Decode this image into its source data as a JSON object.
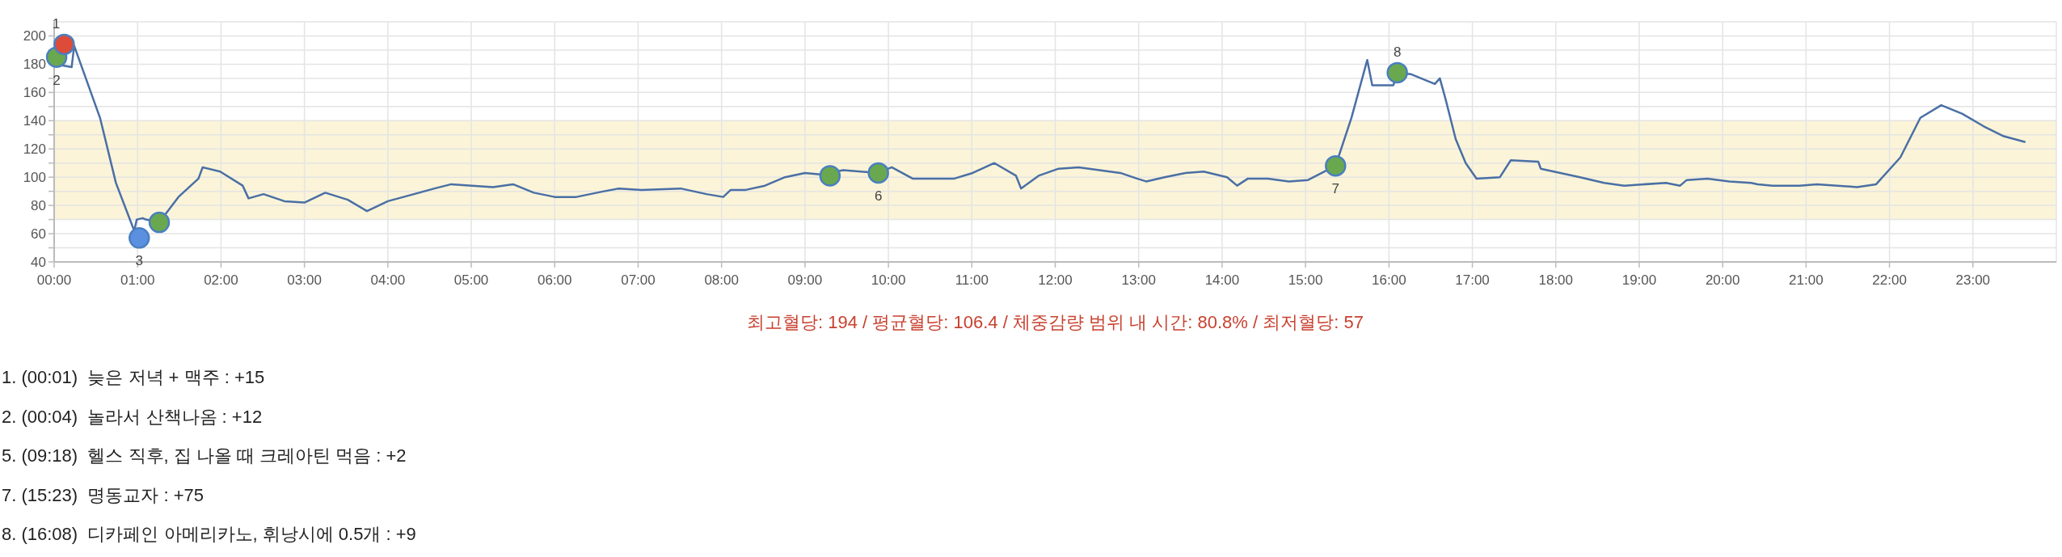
{
  "chart_data": {
    "type": "line",
    "grid": true,
    "xlim": [
      0,
      24
    ],
    "xticks": [
      {
        "value": 0,
        "label": "00:00"
      },
      {
        "value": 1,
        "label": "01:00"
      },
      {
        "value": 2,
        "label": "02:00"
      },
      {
        "value": 3,
        "label": "03:00"
      },
      {
        "value": 4,
        "label": "04:00"
      },
      {
        "value": 5,
        "label": "05:00"
      },
      {
        "value": 6,
        "label": "06:00"
      },
      {
        "value": 7,
        "label": "07:00"
      },
      {
        "value": 8,
        "label": "08:00"
      },
      {
        "value": 9,
        "label": "09:00"
      },
      {
        "value": 10,
        "label": "10:00"
      },
      {
        "value": 11,
        "label": "11:00"
      },
      {
        "value": 12,
        "label": "12:00"
      },
      {
        "value": 13,
        "label": "13:00"
      },
      {
        "value": 14,
        "label": "14:00"
      },
      {
        "value": 15,
        "label": "15:00"
      },
      {
        "value": 16,
        "label": "16:00"
      },
      {
        "value": 17,
        "label": "17:00"
      },
      {
        "value": 18,
        "label": "18:00"
      },
      {
        "value": 19,
        "label": "19:00"
      },
      {
        "value": 20,
        "label": "20:00"
      },
      {
        "value": 21,
        "label": "21:00"
      },
      {
        "value": 22,
        "label": "22:00"
      },
      {
        "value": 23,
        "label": "23:00"
      }
    ],
    "ylim": [
      40,
      210
    ],
    "yticks": [
      40,
      {
        "value": 50,
        "label": null
      },
      60,
      {
        "value": 70,
        "label": null
      },
      80,
      {
        "value": 90,
        "label": null
      },
      100,
      {
        "value": 110,
        "label": null
      },
      120,
      {
        "value": 130,
        "label": null
      },
      140,
      {
        "value": 150,
        "label": null
      },
      160,
      {
        "value": 170,
        "label": null
      },
      180,
      {
        "value": 190,
        "label": null
      },
      200
    ],
    "bands": [
      {
        "axis": "y",
        "from": 70,
        "to": 140,
        "color": "#fbf4d8"
      }
    ],
    "series": [
      {
        "color": "#4a6fa5",
        "x": [
          0.02,
          0.21,
          0.24,
          0.55,
          0.74,
          0.96,
          0.99,
          1.06,
          1.1,
          1.26,
          1.49,
          1.73,
          1.78,
          1.99,
          2.26,
          2.33,
          2.51,
          2.76,
          3.0,
          3.25,
          3.52,
          3.75,
          4.0,
          4.25,
          4.56,
          4.76,
          5.26,
          5.5,
          5.75,
          6.0,
          6.26,
          6.59,
          6.77,
          7.04,
          7.51,
          7.82,
          8.02,
          8.11,
          8.29,
          8.52,
          8.76,
          9.0,
          9.18,
          9.46,
          9.88,
          10.04,
          10.29,
          10.79,
          11.01,
          11.27,
          11.53,
          11.59,
          11.8,
          12.04,
          12.28,
          12.78,
          12.98,
          13.09,
          13.31,
          13.56,
          13.78,
          14.06,
          14.18,
          14.31,
          14.55,
          14.8,
          15.03,
          15.36,
          15.55,
          15.74,
          15.8,
          16.05,
          16.12,
          16.26,
          16.55,
          16.61,
          16.68,
          16.8,
          16.92,
          17.05,
          17.33,
          17.46,
          17.79,
          17.82,
          18.29,
          18.58,
          18.82,
          19.32,
          19.49,
          19.57,
          19.82,
          20.08,
          20.34,
          20.42,
          20.6,
          20.92,
          21.13,
          21.61,
          21.84,
          22.13,
          22.37,
          22.62,
          22.87,
          23.13,
          23.37,
          23.62
        ],
        "values": [
          180,
          178,
          193,
          142,
          96,
          62,
          70,
          71,
          70,
          68,
          86,
          99,
          107,
          104,
          94,
          85,
          88,
          83,
          82,
          89,
          84,
          76,
          83,
          87,
          92,
          95,
          93,
          95,
          89,
          86,
          86,
          90,
          92,
          91,
          92,
          88,
          86,
          91,
          91,
          94,
          100,
          103,
          102,
          105,
          103,
          107,
          99,
          99,
          103,
          110,
          101,
          92,
          101,
          106,
          107,
          103,
          99,
          97,
          100,
          103,
          104,
          100,
          94,
          99,
          99,
          97,
          98,
          108,
          142,
          183,
          165,
          165,
          174,
          173,
          166,
          170,
          155,
          127,
          110,
          99,
          100,
          112,
          111,
          106,
          100,
          96,
          94,
          96,
          94,
          98,
          99,
          97,
          96,
          95,
          94,
          94,
          95,
          93,
          95,
          114,
          142,
          151,
          145,
          136,
          129,
          125
        ]
      },
      {
        "type": "scatter",
        "x": [
          0.03,
          0.12,
          1.02,
          1.26,
          9.3,
          9.88,
          15.36,
          16.1
        ],
        "values": [
          185,
          194,
          57,
          68,
          101,
          103,
          108,
          174
        ],
        "colors": [
          "#6aa84f",
          "#dd4b39",
          "#5b8fe0",
          "#6aa84f",
          "#6aa84f",
          "#6aa84f",
          "#6aa84f",
          "#6aa84f"
        ]
      }
    ],
    "annotations": [
      {
        "text": "1",
        "x": 0.12,
        "y": 194
      },
      {
        "text": "2",
        "x": 0.03,
        "y": 185
      },
      {
        "text": "3",
        "x": 1.02,
        "y": 57
      },
      {
        "text": "6",
        "x": 9.88,
        "y": 103
      },
      {
        "text": "7",
        "x": 15.36,
        "y": 108
      },
      {
        "text": "8",
        "x": 16.1,
        "y": 174
      },
      "최고혈당: 194 / 평균혈당: 106.4 / 체중감량 범위 내 시간: 80.8% / 최저혈당: 57",
      "1. (00:01)  늦은 저녁 + 맥주 : +15",
      "2. (00:04)  놀라서 산책나옴 : +12",
      "5. (09:18)  헬스 직후, 집 나올 때 크레아틴 먹음 : +2",
      "7. (15:23)  명동교자 : +75",
      "8. (16:08)  디카페인 아메리카노, 휘낭시에 0.5개 : +9"
    ]
  }
}
